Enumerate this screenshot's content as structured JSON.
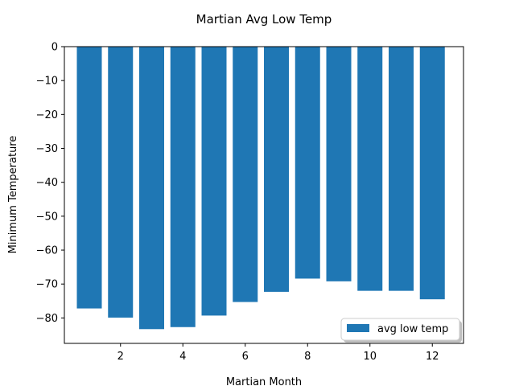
{
  "chart_data": {
    "type": "bar",
    "title": "Martian Avg Low Temp",
    "xlabel": "Martian Month",
    "ylabel": "Minimum Temperature",
    "x": [
      1,
      2,
      3,
      4,
      5,
      6,
      7,
      8,
      9,
      10,
      11,
      12
    ],
    "values": [
      -77.2,
      -79.9,
      -83.3,
      -82.7,
      -79.3,
      -75.3,
      -72.3,
      -68.4,
      -69.2,
      -72.0,
      -72.0,
      -74.5
    ],
    "xlim": [
      0.2,
      13.0
    ],
    "ylim": [
      -87.5,
      0
    ],
    "xticks": [
      2,
      4,
      6,
      8,
      10,
      12
    ],
    "yticks": [
      0,
      -10,
      -20,
      -30,
      -40,
      -50,
      -60,
      -70,
      -80
    ],
    "legend": {
      "label": "avg low temp",
      "position": "lower-right"
    },
    "bar_color": "#1f77b4",
    "grid": false
  }
}
